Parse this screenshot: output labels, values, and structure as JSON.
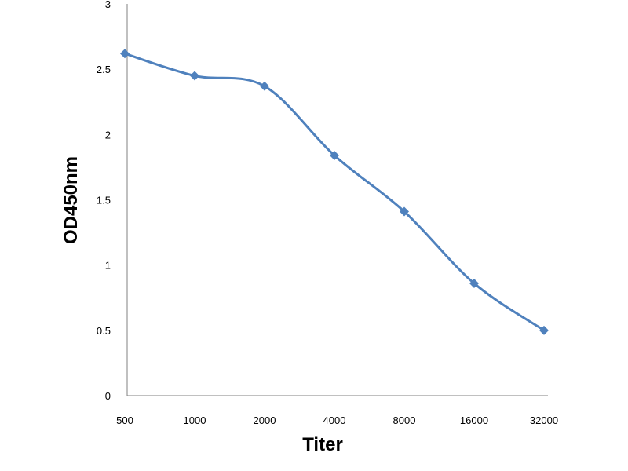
{
  "chart_data": {
    "type": "line",
    "title": "",
    "xlabel": "Titer",
    "ylabel": "OD450nm",
    "categories": [
      "500",
      "1000",
      "2000",
      "4000",
      "8000",
      "16000",
      "32000"
    ],
    "y_ticks": [
      "0",
      "0.5",
      "1",
      "1.5",
      "2",
      "2.5",
      "3"
    ],
    "ylim": [
      0,
      3
    ],
    "grid": false,
    "legend": "none",
    "smooth": true,
    "series": [
      {
        "color": "#4F81BD",
        "marker": "diamond",
        "values": [
          2.62,
          2.45,
          2.37,
          1.84,
          1.41,
          0.86,
          0.5
        ]
      }
    ]
  }
}
